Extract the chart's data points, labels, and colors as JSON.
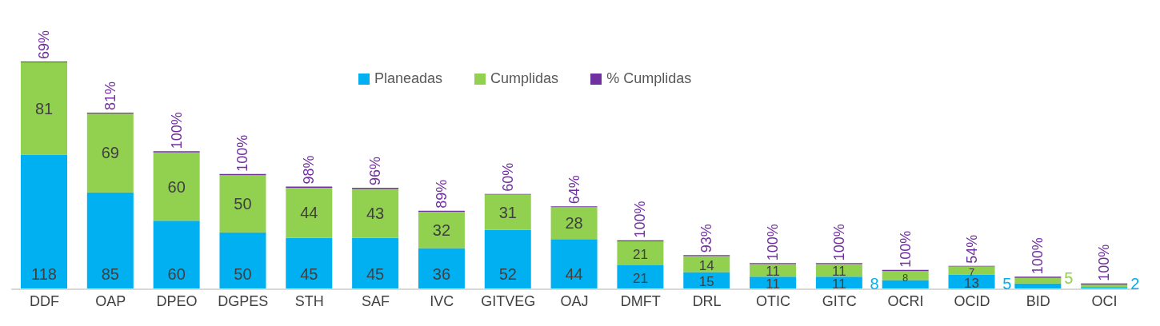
{
  "chart_data": {
    "type": "bar",
    "stacked": true,
    "legend": "top",
    "categories": [
      "DDF",
      "OAP",
      "DPEO",
      "DGPES",
      "STH",
      "SAF",
      "IVC",
      "GITVEG",
      "OAJ",
      "DMFT",
      "DRL",
      "OTIC",
      "GITC",
      "OCRI",
      "OCID",
      "BID",
      "OCI"
    ],
    "series": [
      {
        "name": "Planeadas",
        "color": "#00b0f0",
        "values": [
          118,
          85,
          60,
          50,
          45,
          45,
          36,
          52,
          44,
          21,
          15,
          11,
          11,
          8,
          13,
          5,
          2
        ],
        "value_labels": [
          "118",
          "85",
          "60",
          "50",
          "45",
          "45",
          "36",
          "52",
          "44",
          "21",
          "15",
          "11",
          "11",
          "8",
          "13",
          "5",
          "2"
        ]
      },
      {
        "name": "Cumplidas",
        "color": "#92d050",
        "values": [
          81,
          69,
          60,
          50,
          44,
          43,
          32,
          31,
          28,
          21,
          14,
          11,
          11,
          8,
          7,
          5,
          2
        ],
        "value_labels": [
          "81",
          "69",
          "60",
          "50",
          "44",
          "43",
          "32",
          "31",
          "28",
          "21",
          "14",
          "11",
          "11",
          "8",
          "7",
          "5",
          null
        ]
      },
      {
        "name": "% Cumplidas",
        "color": "#7030a0",
        "values": [
          0.69,
          0.81,
          1,
          1,
          0.98,
          0.96,
          0.89,
          0.6,
          0.64,
          1,
          0.93,
          1,
          1,
          1,
          0.54,
          1,
          1
        ],
        "value_labels": [
          "69%",
          "81%",
          "100%",
          "100%",
          "98%",
          "96%",
          "89%",
          "60%",
          "64%",
          "100%",
          "93%",
          "100%",
          "100%",
          "100%",
          "54%",
          "100%",
          "100%"
        ]
      }
    ]
  }
}
